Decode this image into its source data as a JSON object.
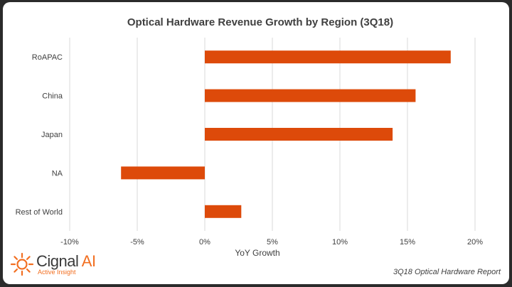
{
  "chart_data": {
    "type": "bar",
    "orientation": "horizontal",
    "title": "Optical Hardware Revenue Growth by Region (3Q18)",
    "categories": [
      "RoAPAC",
      "China",
      "Japan",
      "NA",
      "Rest of World"
    ],
    "values": [
      18.2,
      15.6,
      13.9,
      -6.2,
      2.7
    ],
    "unit": "%",
    "xlabel": "YoY Growth",
    "ylabel": "",
    "xlim": [
      -10,
      20
    ],
    "xticks": [
      -10,
      -5,
      0,
      5,
      10,
      15,
      20
    ],
    "xtick_labels": [
      "-10%",
      "-5%",
      "0%",
      "5%",
      "10%",
      "15%",
      "20%"
    ],
    "grid": true,
    "bar_color": "#dd4a0a"
  },
  "branding": {
    "logo_name": "Cignal",
    "logo_ai": "AI",
    "logo_tagline": "Active Insight",
    "accent_color": "#f26f21"
  },
  "footer": {
    "report": "3Q18 Optical Hardware Report"
  }
}
